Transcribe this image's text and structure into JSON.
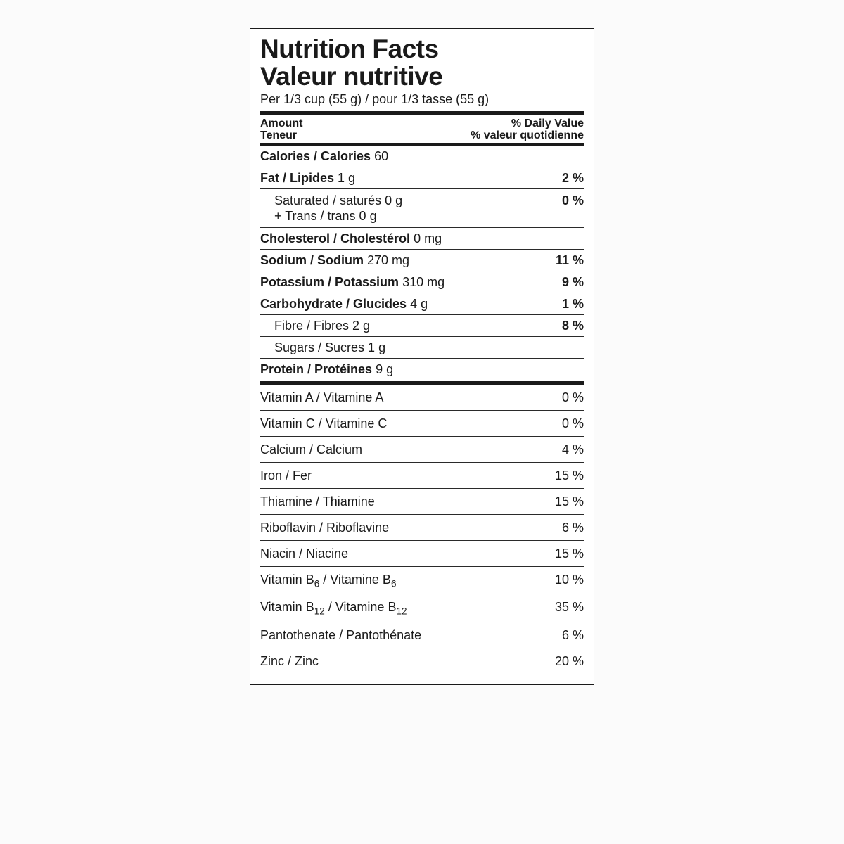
{
  "title": {
    "line1": "Nutrition Facts",
    "line2": "Valeur nutritive"
  },
  "serving": "Per 1/3 cup (55 g) / pour 1/3 tasse (55 g)",
  "header": {
    "amount_en": "Amount",
    "amount_fr": "Teneur",
    "dv_en": "% Daily Value",
    "dv_fr": "% valeur quotidienne"
  },
  "calories": {
    "label": "Calories / Calories",
    "value": "60"
  },
  "fat": {
    "label": "Fat / Lipides",
    "value": "1 g",
    "dv": "2 %"
  },
  "sat": {
    "line1": "Saturated / saturés 0 g",
    "line2": "+ Trans / trans 0 g",
    "dv": "0 %"
  },
  "chol": {
    "label": "Cholesterol / Cholestérol",
    "value": "0 mg"
  },
  "sodium": {
    "label": "Sodium / Sodium",
    "value": "270 mg",
    "dv": "11 %"
  },
  "potassium": {
    "label": "Potassium / Potassium",
    "value": "310 mg",
    "dv": "9 %"
  },
  "carb": {
    "label": "Carbohydrate / Glucides",
    "value": "4 g",
    "dv": "1 %"
  },
  "fibre": {
    "label": "Fibre / Fibres 2 g",
    "dv": "8 %"
  },
  "sugars": {
    "label": "Sugars / Sucres 1 g"
  },
  "protein": {
    "label": "Protein / Protéines",
    "value": "9 g"
  },
  "vitamins": {
    "vitA": {
      "label": "Vitamin A / Vitamine A",
      "dv": "0 %"
    },
    "vitC": {
      "label": "Vitamin C / Vitamine C",
      "dv": "0 %"
    },
    "calcium": {
      "label": "Calcium / Calcium",
      "dv": "4 %"
    },
    "iron": {
      "label": "Iron / Fer",
      "dv": "15 %"
    },
    "thiamine": {
      "label": "Thiamine / Thiamine",
      "dv": "15 %"
    },
    "riboflavin": {
      "label": "Riboflavin / Riboflavine",
      "dv": "6 %"
    },
    "niacin": {
      "label": "Niacin / Niacine",
      "dv": "15 %"
    },
    "b6": {
      "pre": "Vitamin B",
      "sub1": "6",
      "mid": " / Vitamine B",
      "sub2": "6",
      "dv": "10 %"
    },
    "b12": {
      "pre": "Vitamin B",
      "sub1": "12",
      "mid": " / Vitamine B",
      "sub2": "12",
      "dv": "35 %"
    },
    "panto": {
      "label": "Pantothenate / Pantothénate",
      "dv": "6 %"
    },
    "zinc": {
      "label": "Zinc / Zinc",
      "dv": "20 %"
    }
  }
}
